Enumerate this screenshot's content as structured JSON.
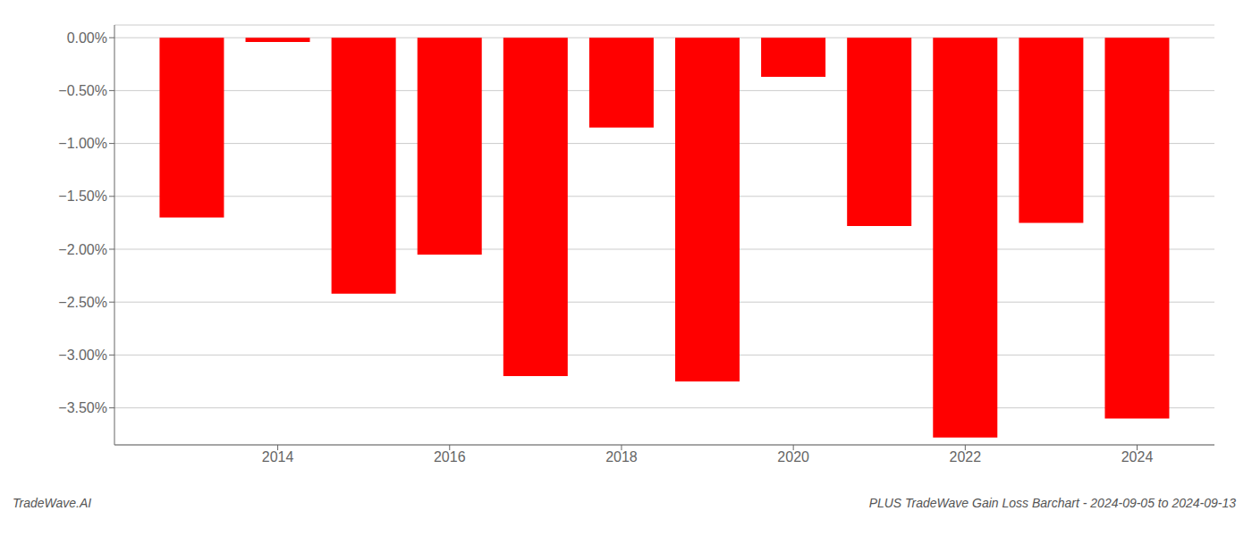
{
  "chart_data": {
    "type": "bar",
    "x": [
      2013,
      2014,
      2015,
      2016,
      2017,
      2018,
      2019,
      2020,
      2021,
      2022,
      2023,
      2024
    ],
    "values": [
      -1.7,
      -0.04,
      -2.42,
      -2.05,
      -3.2,
      -0.85,
      -3.25,
      -0.37,
      -1.78,
      -3.78,
      -1.75,
      -3.6
    ],
    "color": "#ff0000",
    "xlim": [
      2012.1,
      2024.9
    ],
    "xticks": [
      2014,
      2016,
      2018,
      2020,
      2022,
      2024
    ],
    "ylim": [
      -3.85,
      0.12
    ],
    "yticks": [
      {
        "value": 0.0,
        "label": "0.00%"
      },
      {
        "value": -0.5,
        "label": "−0.50%"
      },
      {
        "value": -1.0,
        "label": "−1.00%"
      },
      {
        "value": -1.5,
        "label": "−1.50%"
      },
      {
        "value": -2.0,
        "label": "−2.00%"
      },
      {
        "value": -2.5,
        "label": "−2.50%"
      },
      {
        "value": -3.0,
        "label": "−3.00%"
      },
      {
        "value": -3.5,
        "label": "−3.50%"
      }
    ],
    "grid": true,
    "annotations": [
      "TradeWave.AI",
      "PLUS TradeWave Gain Loss Barchart - 2024-09-05 to 2024-09-13"
    ]
  }
}
